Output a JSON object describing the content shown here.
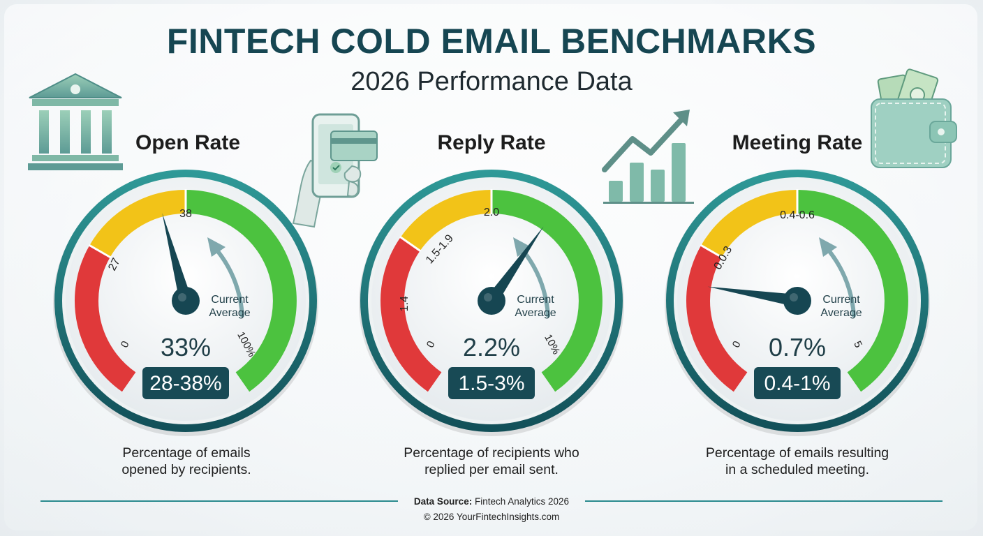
{
  "header": {
    "title": "FINTECH COLD EMAIL BENCHMARKS",
    "subtitle": "2026 Performance Data"
  },
  "gauges": [
    {
      "title": "Open Rate",
      "min_label": "0",
      "max_label": "100%",
      "tick_labels": [
        "27",
        "38"
      ],
      "pointer_label": "Current Average",
      "value_label": "33%",
      "range_label": "28-38%",
      "value": 33,
      "scale_max": 100,
      "description_line1": "Percentage of emails",
      "description_line2": "opened by recipients."
    },
    {
      "title": "Reply Rate",
      "min_label": "0",
      "max_label": "10%",
      "tick_labels": [
        "1.4",
        "1.5-1.9",
        "2.0"
      ],
      "pointer_label": "Current Average",
      "value_label": "2.2%",
      "range_label": "1.5-3%",
      "value": 2.2,
      "scale_max": 10,
      "description_line1": "Percentage of recipients who",
      "description_line2": "replied per email sent."
    },
    {
      "title": "Meeting Rate",
      "min_label": "0",
      "max_label": "5",
      "tick_labels": [
        "0.0.3",
        "0.4-0.6"
      ],
      "pointer_label": "Current Average",
      "value_label": "0.7%",
      "range_label": "0.4-1%",
      "value": 0.7,
      "scale_max": 5,
      "description_line1": "Percentage of emails resulting",
      "description_line2": "in a scheduled meeting."
    }
  ],
  "footer": {
    "source_label": "Data Source:",
    "source_value": "Fintech Analytics 2026",
    "copyright": "© 2026  YourFintechInsights.com"
  },
  "colors": {
    "teal_dark": "#164652",
    "teal_ring": "#1f7f80",
    "red": "#e0393a",
    "yellow": "#f2c318",
    "green": "#4cc23f",
    "badge": "#184a55"
  },
  "icons": [
    "bank-icon",
    "mobile-payment-icon",
    "growth-chart-icon",
    "wallet-icon"
  ]
}
